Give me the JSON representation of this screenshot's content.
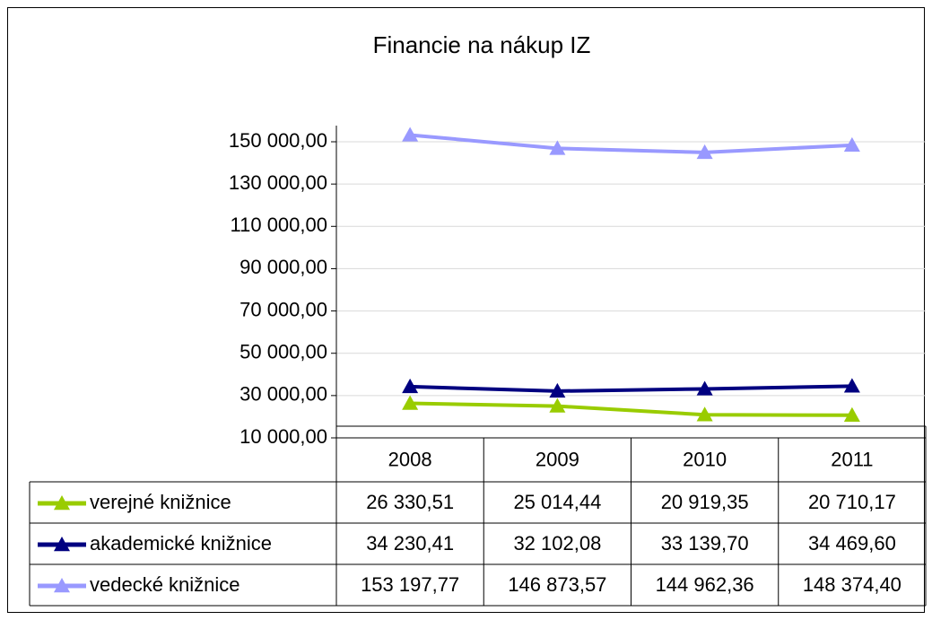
{
  "chart_data": {
    "type": "line",
    "title": "Financie na nákup IZ",
    "categories": [
      "2008",
      "2009",
      "2010",
      "2011"
    ],
    "series": [
      {
        "name": "verejné knižnice",
        "color": "#99cc00",
        "values": [
          26330.51,
          25014.44,
          20919.35,
          20710.17
        ],
        "value_labels": [
          "26 330,51",
          "25 014,44",
          "20 919,35",
          "20 710,17"
        ]
      },
      {
        "name": "akademické knižnice",
        "color": "#000080",
        "values": [
          34230.41,
          32102.08,
          33139.7,
          34469.6
        ],
        "value_labels": [
          "34 230,41",
          "32 102,08",
          "33 139,70",
          "34 469,60"
        ]
      },
      {
        "name": "vedecké knižnice",
        "color": "#9999ff",
        "values": [
          153197.77,
          146873.57,
          144962.36,
          148374.4
        ],
        "value_labels": [
          "153 197,77",
          "146 873,57",
          "144 962,36",
          "148 374,40"
        ]
      }
    ],
    "ylim": [
      10000,
      150000
    ],
    "yticks": [
      {
        "value": 10000,
        "label": "10 000,00"
      },
      {
        "value": 30000,
        "label": "30 000,00"
      },
      {
        "value": 50000,
        "label": "50 000,00"
      },
      {
        "value": 70000,
        "label": "70 000,00"
      },
      {
        "value": 90000,
        "label": "90 000,00"
      },
      {
        "value": 110000,
        "label": "110 000,00"
      },
      {
        "value": 130000,
        "label": "130 000,00"
      },
      {
        "value": 150000,
        "label": "150 000,00"
      }
    ],
    "grid": true
  }
}
